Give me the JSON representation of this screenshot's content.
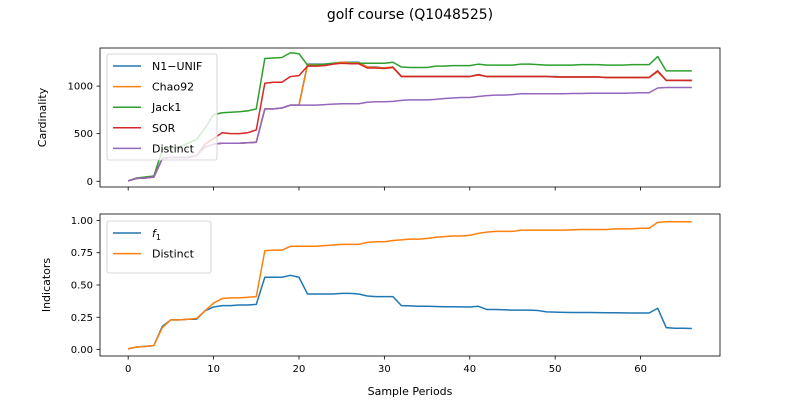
{
  "title": "golf course (Q1048525)",
  "colors": {
    "blue": "#1f77b4",
    "orange": "#ff7f0e",
    "green": "#2ca02c",
    "red": "#d62728",
    "purple": "#9467bd"
  },
  "chart_data": [
    {
      "type": "line",
      "title": "",
      "xlabel": "",
      "ylabel": "Cardinality",
      "xlim": [
        -3.3,
        69.3
      ],
      "ylim": [
        -60,
        1400
      ],
      "xticks": [
        0,
        10,
        20,
        30,
        40,
        50,
        60
      ],
      "yticks": [
        0,
        500,
        1000
      ],
      "show_x_tick_labels": false,
      "grid": false,
      "legend_position": "upper-left",
      "x": [
        0,
        1,
        2,
        3,
        4,
        5,
        6,
        7,
        8,
        9,
        10,
        11,
        12,
        13,
        14,
        15,
        16,
        17,
        18,
        19,
        20,
        21,
        22,
        23,
        24,
        25,
        26,
        27,
        28,
        29,
        30,
        31,
        32,
        33,
        34,
        35,
        36,
        37,
        38,
        39,
        40,
        41,
        42,
        43,
        44,
        45,
        46,
        47,
        48,
        49,
        50,
        51,
        52,
        53,
        54,
        55,
        56,
        57,
        58,
        59,
        60,
        61,
        62,
        63,
        64,
        65,
        66
      ],
      "series": [
        {
          "name": "N1−UNIF",
          "color": "#1f77b4",
          "values": [
            5,
            30,
            35,
            45,
            240,
            250,
            250,
            250,
            270,
            360,
            390,
            400,
            400,
            400,
            405,
            410,
            760,
            760,
            770,
            800,
            800,
            1230,
            1230,
            1230,
            1240,
            1250,
            1250,
            1250,
            1200,
            1200,
            1190,
            1200,
            1100,
            1100,
            1100,
            1100,
            1100,
            1100,
            1100,
            1100,
            1100,
            1120,
            1100,
            1100,
            1100,
            1100,
            1100,
            1100,
            1100,
            1100,
            1100,
            1095,
            1095,
            1095,
            1095,
            1095,
            1090,
            1090,
            1090,
            1090,
            1090,
            1090,
            1160,
            1060,
            1060,
            1060,
            1060
          ]
        },
        {
          "name": "Chao92",
          "color": "#ff7f0e",
          "values": [
            5,
            30,
            35,
            45,
            240,
            250,
            250,
            250,
            270,
            360,
            390,
            400,
            400,
            400,
            405,
            410,
            760,
            760,
            770,
            800,
            800,
            1225,
            1225,
            1225,
            1240,
            1250,
            1245,
            1245,
            1200,
            1195,
            1190,
            1200,
            1100,
            1100,
            1100,
            1100,
            1100,
            1100,
            1100,
            1100,
            1100,
            1115,
            1100,
            1100,
            1100,
            1100,
            1100,
            1100,
            1100,
            1100,
            1095,
            1095,
            1095,
            1095,
            1095,
            1095,
            1090,
            1090,
            1090,
            1090,
            1090,
            1090,
            1150,
            1060,
            1060,
            1060,
            1055
          ]
        },
        {
          "name": "Jack1",
          "color": "#2ca02c",
          "values": [
            5,
            35,
            45,
            55,
            330,
            350,
            360,
            400,
            440,
            560,
            700,
            720,
            725,
            730,
            740,
            760,
            1290,
            1295,
            1300,
            1350,
            1340,
            1220,
            1220,
            1230,
            1240,
            1240,
            1240,
            1240,
            1240,
            1240,
            1240,
            1250,
            1200,
            1195,
            1195,
            1195,
            1210,
            1210,
            1215,
            1215,
            1215,
            1230,
            1220,
            1220,
            1220,
            1220,
            1230,
            1230,
            1225,
            1220,
            1220,
            1220,
            1220,
            1225,
            1225,
            1225,
            1220,
            1220,
            1220,
            1225,
            1225,
            1225,
            1310,
            1160,
            1160,
            1160,
            1160
          ]
        },
        {
          "name": "SOR",
          "color": "#d62728",
          "values": [
            5,
            30,
            35,
            45,
            240,
            250,
            250,
            250,
            270,
            390,
            450,
            510,
            500,
            500,
            510,
            540,
            1030,
            1040,
            1040,
            1100,
            1110,
            1210,
            1210,
            1215,
            1230,
            1240,
            1235,
            1235,
            1190,
            1190,
            1185,
            1195,
            1100,
            1100,
            1100,
            1100,
            1100,
            1100,
            1100,
            1100,
            1100,
            1120,
            1100,
            1100,
            1100,
            1100,
            1100,
            1100,
            1100,
            1100,
            1095,
            1095,
            1095,
            1095,
            1095,
            1095,
            1090,
            1090,
            1090,
            1090,
            1090,
            1090,
            1160,
            1060,
            1060,
            1060,
            1060
          ]
        },
        {
          "name": "Distinct",
          "color": "#9467bd",
          "values": [
            5,
            30,
            35,
            45,
            240,
            250,
            250,
            250,
            270,
            360,
            390,
            400,
            400,
            400,
            405,
            410,
            760,
            760,
            770,
            800,
            800,
            800,
            800,
            805,
            810,
            815,
            815,
            815,
            830,
            835,
            835,
            840,
            850,
            855,
            855,
            855,
            860,
            870,
            875,
            880,
            880,
            890,
            900,
            905,
            905,
            910,
            920,
            920,
            920,
            920,
            920,
            920,
            922,
            922,
            925,
            925,
            925,
            925,
            925,
            928,
            930,
            930,
            980,
            985,
            985,
            985,
            985
          ]
        }
      ]
    },
    {
      "type": "line",
      "title": "",
      "xlabel": "Sample Periods",
      "ylabel": "Indicators",
      "xlim": [
        -3.3,
        69.3
      ],
      "ylim": [
        -0.05,
        1.05
      ],
      "xticks": [
        0,
        10,
        20,
        30,
        40,
        50,
        60
      ],
      "yticks": [
        0.0,
        0.25,
        0.5,
        0.75,
        1.0
      ],
      "ytick_labels": [
        "0.00",
        "0.25",
        "0.50",
        "0.75",
        "1.00"
      ],
      "grid": false,
      "legend_position": "upper-left",
      "x": [
        0,
        1,
        2,
        3,
        4,
        5,
        6,
        7,
        8,
        9,
        10,
        11,
        12,
        13,
        14,
        15,
        16,
        17,
        18,
        19,
        20,
        21,
        22,
        23,
        24,
        25,
        26,
        27,
        28,
        29,
        30,
        31,
        32,
        33,
        34,
        35,
        36,
        37,
        38,
        39,
        40,
        41,
        42,
        43,
        44,
        45,
        46,
        47,
        48,
        49,
        50,
        51,
        52,
        53,
        54,
        55,
        56,
        57,
        58,
        59,
        60,
        61,
        62,
        63,
        64,
        65,
        66
      ],
      "series": [
        {
          "name": "f1",
          "label_base": "f",
          "label_sub": "1",
          "color": "#1f77b4",
          "values": [
            0.005,
            0.02,
            0.025,
            0.03,
            0.18,
            0.23,
            0.23,
            0.235,
            0.235,
            0.3,
            0.33,
            0.34,
            0.34,
            0.345,
            0.345,
            0.35,
            0.56,
            0.56,
            0.56,
            0.575,
            0.56,
            0.43,
            0.43,
            0.43,
            0.43,
            0.435,
            0.435,
            0.43,
            0.415,
            0.41,
            0.41,
            0.41,
            0.34,
            0.338,
            0.335,
            0.335,
            0.333,
            0.332,
            0.332,
            0.331,
            0.33,
            0.335,
            0.31,
            0.31,
            0.308,
            0.305,
            0.305,
            0.305,
            0.302,
            0.292,
            0.29,
            0.288,
            0.287,
            0.287,
            0.287,
            0.286,
            0.285,
            0.285,
            0.284,
            0.283,
            0.283,
            0.283,
            0.32,
            0.17,
            0.165,
            0.165,
            0.163
          ]
        },
        {
          "name": "Distinct",
          "color": "#ff7f0e",
          "values": [
            0.005,
            0.02,
            0.025,
            0.03,
            0.17,
            0.23,
            0.23,
            0.235,
            0.24,
            0.3,
            0.36,
            0.395,
            0.4,
            0.4,
            0.405,
            0.41,
            0.765,
            0.77,
            0.77,
            0.8,
            0.8,
            0.8,
            0.8,
            0.805,
            0.81,
            0.815,
            0.815,
            0.815,
            0.83,
            0.835,
            0.835,
            0.845,
            0.85,
            0.855,
            0.855,
            0.86,
            0.87,
            0.875,
            0.88,
            0.88,
            0.885,
            0.9,
            0.91,
            0.915,
            0.915,
            0.915,
            0.925,
            0.925,
            0.925,
            0.925,
            0.925,
            0.925,
            0.927,
            0.93,
            0.93,
            0.93,
            0.93,
            0.935,
            0.935,
            0.935,
            0.94,
            0.94,
            0.985,
            0.99,
            0.99,
            0.99,
            0.99
          ]
        }
      ]
    }
  ]
}
